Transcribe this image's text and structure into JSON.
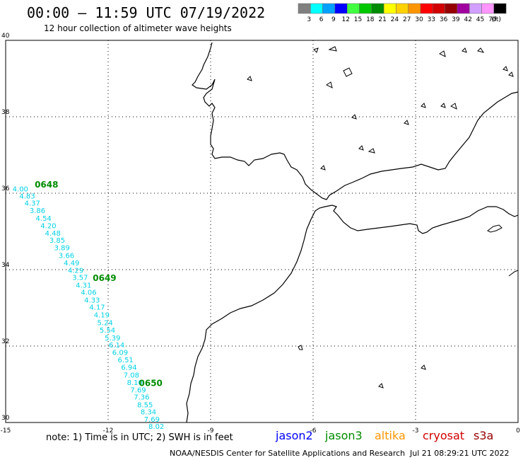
{
  "header": {
    "title": "00:00 – 11:59 UTC 07/19/2022",
    "subtitle": "12 hour collection of altimeter wave heights"
  },
  "legend": {
    "unit": "(ft)",
    "bins": [
      {
        "label": "3",
        "color": "#808080"
      },
      {
        "label": "6",
        "color": "#00ffff"
      },
      {
        "label": "9",
        "color": "#00a0ff"
      },
      {
        "label": "12",
        "color": "#0000ff"
      },
      {
        "label": "15",
        "color": "#40ff40"
      },
      {
        "label": "18",
        "color": "#00c800"
      },
      {
        "label": "21",
        "color": "#008c00"
      },
      {
        "label": "24",
        "color": "#ffff00"
      },
      {
        "label": "27",
        "color": "#ffd200"
      },
      {
        "label": "30",
        "color": "#ff9600"
      },
      {
        "label": "33",
        "color": "#ff0000"
      },
      {
        "label": "36",
        "color": "#d20000"
      },
      {
        "label": "39",
        "color": "#960000"
      },
      {
        "label": "42",
        "color": "#a000a0"
      },
      {
        "label": "45",
        "color": "#d2a0ff"
      },
      {
        "label": "70",
        "color": "#ff96ff"
      },
      {
        "label": "",
        "color": "#000000"
      }
    ]
  },
  "axes": {
    "lon_ticks": [
      "-15",
      "-12",
      "-9",
      "-6",
      "-3",
      "0"
    ],
    "lat_ticks": [
      "30",
      "32",
      "34",
      "36",
      "38",
      "40"
    ]
  },
  "track": {
    "color": "#00d2e6",
    "label_color": "#008c00",
    "time_labels": [
      {
        "text": "0648",
        "lon": -14.15,
        "lat": 36.15
      },
      {
        "text": "0649",
        "lon": -12.45,
        "lat": 33.7
      },
      {
        "text": "0650",
        "lon": -11.1,
        "lat": 30.95
      }
    ],
    "points": [
      {
        "lon": -14.8,
        "lat": 36.05,
        "swh": "4.00"
      },
      {
        "lon": -14.6,
        "lat": 35.86,
        "swh": "4.83"
      },
      {
        "lon": -14.45,
        "lat": 35.68,
        "swh": "4.37"
      },
      {
        "lon": -14.3,
        "lat": 35.48,
        "swh": "3.86"
      },
      {
        "lon": -14.12,
        "lat": 35.28,
        "swh": "4.54"
      },
      {
        "lon": -13.98,
        "lat": 35.08,
        "swh": "4.20"
      },
      {
        "lon": -13.85,
        "lat": 34.89,
        "swh": "4.48"
      },
      {
        "lon": -13.72,
        "lat": 34.7,
        "swh": "3.85"
      },
      {
        "lon": -13.58,
        "lat": 34.51,
        "swh": "3.89"
      },
      {
        "lon": -13.45,
        "lat": 34.31,
        "swh": "3.66"
      },
      {
        "lon": -13.3,
        "lat": 34.11,
        "swh": "4.49"
      },
      {
        "lon": -13.18,
        "lat": 33.92,
        "swh": "4.29"
      },
      {
        "lon": -13.05,
        "lat": 33.73,
        "swh": "3.57"
      },
      {
        "lon": -12.95,
        "lat": 33.53,
        "swh": "4.31"
      },
      {
        "lon": -12.8,
        "lat": 33.34,
        "swh": "4.06"
      },
      {
        "lon": -12.7,
        "lat": 33.14,
        "swh": "4.33"
      },
      {
        "lon": -12.55,
        "lat": 32.95,
        "swh": "4.17"
      },
      {
        "lon": -12.42,
        "lat": 32.75,
        "swh": "4.19"
      },
      {
        "lon": -12.32,
        "lat": 32.55,
        "swh": "5.24"
      },
      {
        "lon": -12.25,
        "lat": 32.35,
        "swh": "5.54"
      },
      {
        "lon": -12.1,
        "lat": 32.15,
        "swh": "5.39"
      },
      {
        "lon": -11.98,
        "lat": 31.96,
        "swh": "6.14"
      },
      {
        "lon": -11.88,
        "lat": 31.77,
        "swh": "6.09"
      },
      {
        "lon": -11.72,
        "lat": 31.57,
        "swh": "6.51"
      },
      {
        "lon": -11.62,
        "lat": 31.38,
        "swh": "6.94"
      },
      {
        "lon": -11.55,
        "lat": 31.18,
        "swh": "7.08"
      },
      {
        "lon": -11.45,
        "lat": 30.98,
        "swh": "8.10"
      },
      {
        "lon": -11.35,
        "lat": 30.79,
        "swh": "7.69"
      },
      {
        "lon": -11.25,
        "lat": 30.6,
        "swh": "7.36"
      },
      {
        "lon": -11.15,
        "lat": 30.4,
        "swh": "8.55"
      },
      {
        "lon": -11.05,
        "lat": 30.21,
        "swh": "8.34"
      },
      {
        "lon": -10.95,
        "lat": 30.02,
        "swh": "7.69"
      },
      {
        "lon": -10.82,
        "lat": 29.83,
        "swh": "8.02"
      }
    ]
  },
  "footer": {
    "note": "note: 1) Time is in UTC; 2) SWH is in feet",
    "satellites": [
      {
        "name": "jason2",
        "color": "#0000ff"
      },
      {
        "name": "jason3",
        "color": "#008c00"
      },
      {
        "name": "altika",
        "color": "#ff9600"
      },
      {
        "name": "cryosat",
        "color": "#d20000"
      },
      {
        "name": "s3a",
        "color": "#960000"
      }
    ],
    "credit": "NOAA/NESDIS Center for Satellite Applications and Research",
    "timestamp": "Jul 21 08:29:21 UTC 2022"
  }
}
